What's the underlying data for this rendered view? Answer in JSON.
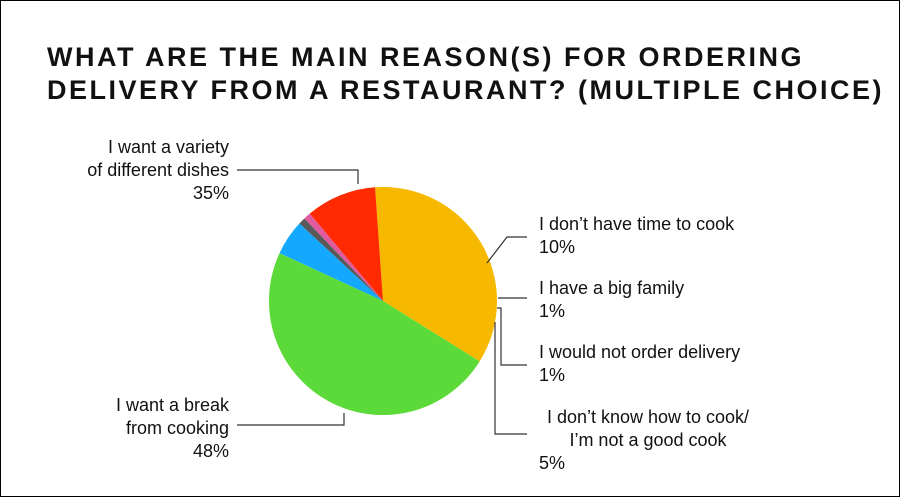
{
  "chart_data": {
    "type": "pie",
    "title_lines": [
      "WHAT ARE THE MAIN REASON(S) FOR ORDERING",
      "DELIVERY FROM A RESTAURANT? (MULTIPLE CHOICE)"
    ],
    "slices": [
      {
        "label_lines": [
          "I want a variety",
          "of different dishes"
        ],
        "value": 35,
        "value_label": "35%",
        "color": "#F7B900"
      },
      {
        "label_lines": [
          "I don’t have time to cook"
        ],
        "value": 10,
        "value_label": "10%",
        "color": "#FF2A00"
      },
      {
        "label_lines": [
          "I have a big family"
        ],
        "value": 1,
        "value_label": "1%",
        "color": "#E05A9E"
      },
      {
        "label_lines": [
          "I would not order delivery"
        ],
        "value": 1,
        "value_label": "1%",
        "color": "#595959"
      },
      {
        "label_lines": [
          "I don’t know how to cook/",
          "I’m not a good cook"
        ],
        "value": 5,
        "value_label": "5%",
        "color": "#14A9FF"
      },
      {
        "label_lines": [
          "I want a break",
          "from cooking"
        ],
        "value": 48,
        "value_label": "48%",
        "color": "#5CDA3A"
      }
    ]
  }
}
